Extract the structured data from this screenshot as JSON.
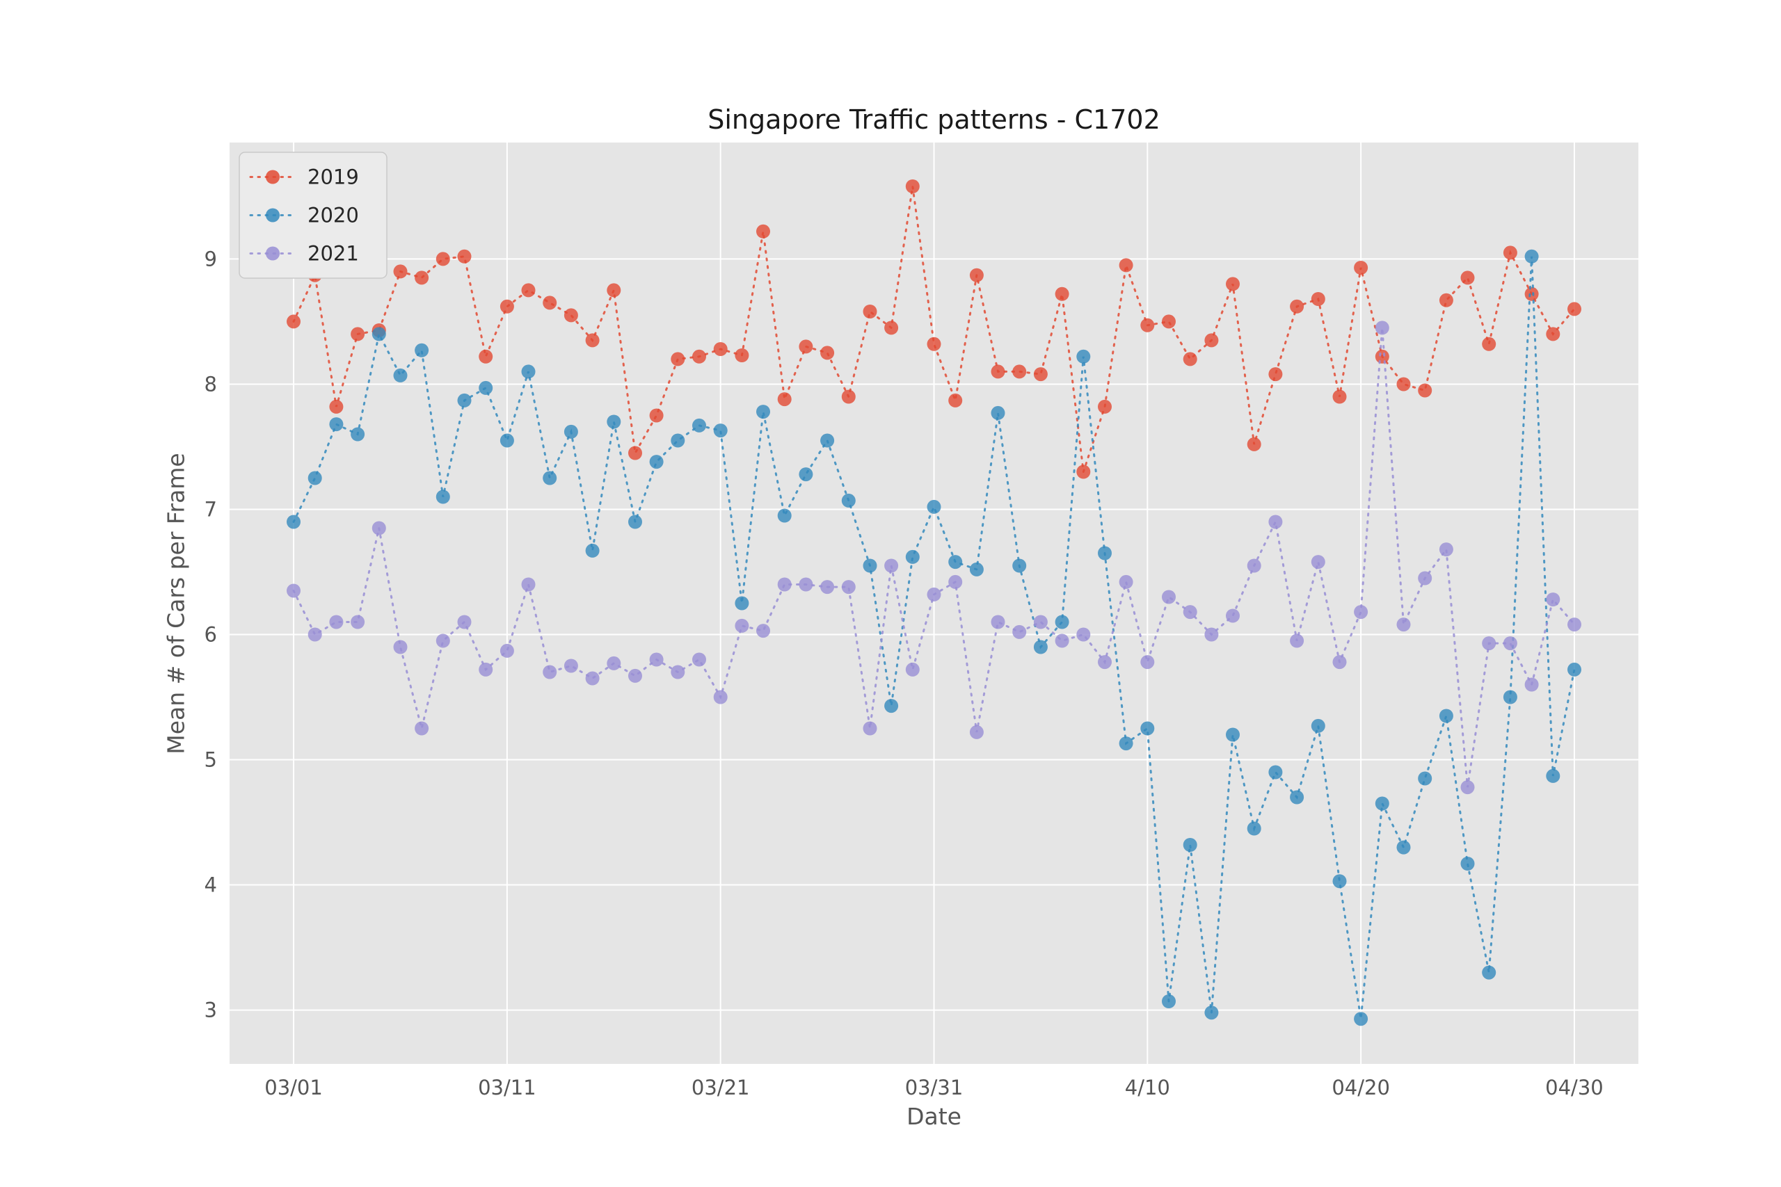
{
  "figure": {
    "background": "#ffffff",
    "plot_background": "#e5e5e5",
    "grid_color": "#ffffff",
    "tick_color": "#555555",
    "legend_background": "#ebebeb",
    "legend_border": "#c9c9c9"
  },
  "chart_data": {
    "type": "line",
    "title": "Singapore Traffic patterns - C1702",
    "xlabel": "Date",
    "ylabel": "Mean # of Cars per Frame",
    "grid": true,
    "legend_position": "upper left",
    "x_tick_labels": [
      "03/01",
      "03/11",
      "03/21",
      "03/31",
      "4/10",
      "04/20",
      "04/30"
    ],
    "x_tick_positions": [
      0,
      10,
      20,
      30,
      40,
      50,
      60
    ],
    "y_ticks": [
      3,
      4,
      5,
      6,
      7,
      8,
      9
    ],
    "xlim": [
      -3,
      63
    ],
    "ylim": [
      2.57,
      9.93
    ],
    "marker_style": "circle-dotted-line",
    "series": [
      {
        "name": "2019",
        "color": "#E24A33",
        "values": [
          8.5,
          8.87,
          7.82,
          8.4,
          8.43,
          8.9,
          8.85,
          9.0,
          9.02,
          8.22,
          8.62,
          8.75,
          8.65,
          8.55,
          8.35,
          8.75,
          7.45,
          7.75,
          8.2,
          8.22,
          8.28,
          8.23,
          9.22,
          7.88,
          8.3,
          8.25,
          7.9,
          8.58,
          8.45,
          9.58,
          8.32,
          7.87,
          8.87,
          8.1,
          8.1,
          8.08,
          8.72,
          7.3,
          7.82,
          8.95,
          8.47,
          8.5,
          8.2,
          8.35,
          8.8,
          7.52,
          8.08,
          8.62,
          8.68,
          7.9,
          8.93,
          8.22,
          8.0,
          7.95,
          8.67,
          8.85,
          8.32,
          9.05,
          8.72,
          8.4,
          8.6
        ]
      },
      {
        "name": "2020",
        "color": "#348ABD",
        "values": [
          6.9,
          7.25,
          7.68,
          7.6,
          8.4,
          8.07,
          8.27,
          7.1,
          7.87,
          7.97,
          7.55,
          8.1,
          7.25,
          7.62,
          6.67,
          7.7,
          6.9,
          7.38,
          7.55,
          7.67,
          7.63,
          6.25,
          7.78,
          6.95,
          7.28,
          7.55,
          7.07,
          6.55,
          5.43,
          6.62,
          7.02,
          6.58,
          6.52,
          7.77,
          6.55,
          5.9,
          6.1,
          8.22,
          6.65,
          5.13,
          5.25,
          3.07,
          4.32,
          2.98,
          5.2,
          4.45,
          4.9,
          4.7,
          5.27,
          4.03,
          2.93,
          4.65,
          4.3,
          4.85,
          5.35,
          4.17,
          3.3,
          5.5,
          9.02,
          4.87,
          5.72
        ]
      },
      {
        "name": "2021",
        "color": "#988ED5",
        "values": [
          6.35,
          6.0,
          6.1,
          6.1,
          6.85,
          5.9,
          5.25,
          5.95,
          6.1,
          5.72,
          5.87,
          6.4,
          5.7,
          5.75,
          5.65,
          5.77,
          5.67,
          5.8,
          5.7,
          5.8,
          5.5,
          6.07,
          6.03,
          6.4,
          6.4,
          6.38,
          6.38,
          5.25,
          6.55,
          5.72,
          6.32,
          6.42,
          5.22,
          6.1,
          6.02,
          6.1,
          5.95,
          6.0,
          5.78,
          6.42,
          5.78,
          6.3,
          6.18,
          6.0,
          6.15,
          6.55,
          6.9,
          5.95,
          6.58,
          5.78,
          6.18,
          8.45,
          6.08,
          6.45,
          6.68,
          4.78,
          5.93,
          5.93,
          5.6,
          6.28,
          6.08
        ]
      }
    ]
  }
}
